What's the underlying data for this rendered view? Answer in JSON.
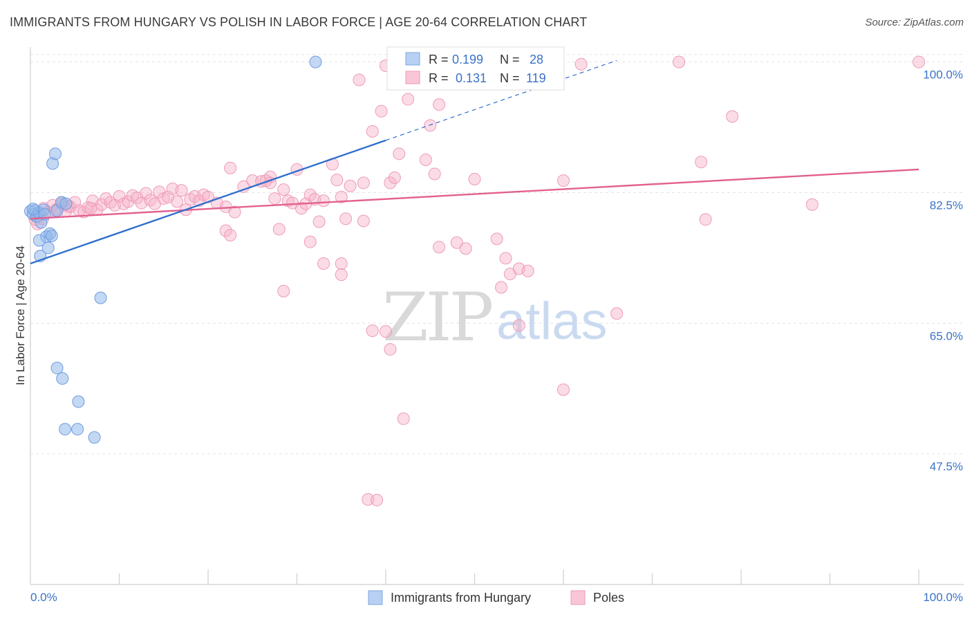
{
  "header": {
    "title": "IMMIGRANTS FROM HUNGARY VS POLISH IN LABOR FORCE | AGE 20-64 CORRELATION CHART",
    "source": "Source: ZipAtlas.com"
  },
  "watermark": {
    "zip": "ZIP",
    "atlas": "atlas"
  },
  "legend": {
    "r_label": "R =",
    "n_label": "N =",
    "entries": [
      {
        "r": "0.199",
        "n": "28"
      },
      {
        "r": "0.131",
        "n": "119"
      }
    ]
  },
  "chart_data": {
    "type": "scatter",
    "title": "IMMIGRANTS FROM HUNGARY VS POLISH IN LABOR FORCE | AGE 20-64 CORRELATION CHART",
    "xlabel": "",
    "ylabel": "In Labor Force | Age 20-64",
    "xlim": [
      0,
      100
    ],
    "ylim": [
      30,
      102
    ],
    "x_tick_labels": [
      "0.0%",
      "100.0%"
    ],
    "y_ticks": [
      47.5,
      65.0,
      82.5,
      100.0
    ],
    "y_tick_labels": [
      "47.5%",
      "65.0%",
      "82.5%",
      "100.0%"
    ],
    "grid": true,
    "legend_position": "bottom",
    "series": [
      {
        "name": "Immigrants from Hungary",
        "color": "#92b8ea",
        "line_color": "#2f6fce",
        "r": 0.199,
        "n": 28,
        "trend": {
          "x0": 0,
          "y0": 73.0,
          "x1": 40,
          "y1": 89.5,
          "dash_to_x": 66,
          "dash_to_y": 100.2
        },
        "points": [
          [
            0.0,
            80.0
          ],
          [
            0.3,
            79.6
          ],
          [
            0.5,
            80.1
          ],
          [
            0.7,
            79.3
          ],
          [
            1.0,
            79.8
          ],
          [
            1.2,
            78.5
          ],
          [
            1.5,
            80.2
          ],
          [
            1.8,
            76.6
          ],
          [
            2.0,
            75.1
          ],
          [
            2.2,
            77.0
          ],
          [
            2.5,
            86.4
          ],
          [
            2.8,
            87.7
          ],
          [
            3.0,
            80.1
          ],
          [
            3.5,
            81.2
          ],
          [
            4.0,
            81.0
          ],
          [
            1.0,
            76.1
          ],
          [
            1.1,
            74.0
          ],
          [
            2.4,
            76.7
          ],
          [
            7.9,
            68.4
          ],
          [
            3.0,
            59.0
          ],
          [
            3.6,
            57.6
          ],
          [
            5.4,
            54.5
          ],
          [
            3.9,
            50.8
          ],
          [
            5.3,
            50.8
          ],
          [
            7.2,
            49.7
          ],
          [
            32.1,
            100.0
          ],
          [
            0.3,
            80.3
          ],
          [
            1.6,
            79.6
          ]
        ]
      },
      {
        "name": "Poles",
        "color": "#f6b2c8",
        "line_color": "#e2608e",
        "r": 0.131,
        "n": 119,
        "trend": {
          "x0": 0,
          "y0": 79.0,
          "x1": 100,
          "y1": 85.6
        },
        "points": [
          [
            0.5,
            78.9
          ],
          [
            1.0,
            79.5
          ],
          [
            1.5,
            80.4
          ],
          [
            2.0,
            79.9
          ],
          [
            2.5,
            80.8
          ],
          [
            3.0,
            80.3
          ],
          [
            3.5,
            81.1
          ],
          [
            4.0,
            80.0
          ],
          [
            4.5,
            80.6
          ],
          [
            5.0,
            81.2
          ],
          [
            5.5,
            80.1
          ],
          [
            6.0,
            79.9
          ],
          [
            6.5,
            80.5
          ],
          [
            7.0,
            81.4
          ],
          [
            7.5,
            80.2
          ],
          [
            8.0,
            80.9
          ],
          [
            8.5,
            81.7
          ],
          [
            9.0,
            81.2
          ],
          [
            9.5,
            80.8
          ],
          [
            10.0,
            82.0
          ],
          [
            10.5,
            81.0
          ],
          [
            11.0,
            81.3
          ],
          [
            11.5,
            82.1
          ],
          [
            12.0,
            81.8
          ],
          [
            12.5,
            81.1
          ],
          [
            13.0,
            82.4
          ],
          [
            13.5,
            81.5
          ],
          [
            14.0,
            81.0
          ],
          [
            14.5,
            82.6
          ],
          [
            15.0,
            81.7
          ],
          [
            15.5,
            81.9
          ],
          [
            16.0,
            83.0
          ],
          [
            16.5,
            81.3
          ],
          [
            17.0,
            82.8
          ],
          [
            17.5,
            80.2
          ],
          [
            18.0,
            81.6
          ],
          [
            18.5,
            82.0
          ],
          [
            19.0,
            81.4
          ],
          [
            19.5,
            82.2
          ],
          [
            20.0,
            81.9
          ],
          [
            21.0,
            81.1
          ],
          [
            22.0,
            80.6
          ],
          [
            0.8,
            78.3
          ],
          [
            1.4,
            79.0
          ],
          [
            2.8,
            80.1
          ],
          [
            3.6,
            80.9
          ],
          [
            4.2,
            80.7
          ],
          [
            6.8,
            80.4
          ],
          [
            22.5,
            85.8
          ],
          [
            24.0,
            83.3
          ],
          [
            25.0,
            84.1
          ],
          [
            26.0,
            84.0
          ],
          [
            27.0,
            84.6
          ],
          [
            27.5,
            81.7
          ],
          [
            28.5,
            82.9
          ],
          [
            30.0,
            85.6
          ],
          [
            30.5,
            80.4
          ],
          [
            31.0,
            81.0
          ],
          [
            22.0,
            77.4
          ],
          [
            22.5,
            76.8
          ],
          [
            23.0,
            79.9
          ],
          [
            27.0,
            83.8
          ],
          [
            26.5,
            84.1
          ],
          [
            28.0,
            77.6
          ],
          [
            29.0,
            81.4
          ],
          [
            29.5,
            81.1
          ],
          [
            31.5,
            82.2
          ],
          [
            32.0,
            81.6
          ],
          [
            32.5,
            78.6
          ],
          [
            33.0,
            81.4
          ],
          [
            34.0,
            86.3
          ],
          [
            34.5,
            84.2
          ],
          [
            35.0,
            81.9
          ],
          [
            35.5,
            79.0
          ],
          [
            36.0,
            83.4
          ],
          [
            37.5,
            83.8
          ],
          [
            37.5,
            78.7
          ],
          [
            38.5,
            90.7
          ],
          [
            39.5,
            93.4
          ],
          [
            40.5,
            83.8
          ],
          [
            41.0,
            84.5
          ],
          [
            41.5,
            87.7
          ],
          [
            42.5,
            95.0
          ],
          [
            43.5,
            99.5
          ],
          [
            45.0,
            91.5
          ],
          [
            44.5,
            86.9
          ],
          [
            45.5,
            85.0
          ],
          [
            46.0,
            75.2
          ],
          [
            48.0,
            75.8
          ],
          [
            49.0,
            75.0
          ],
          [
            47.5,
            99.8
          ],
          [
            50.0,
            84.3
          ],
          [
            50.5,
            99.6
          ],
          [
            52.5,
            76.3
          ],
          [
            53.0,
            69.8
          ],
          [
            53.5,
            73.7
          ],
          [
            54.0,
            71.6
          ],
          [
            55.0,
            72.3
          ],
          [
            55.0,
            64.7
          ],
          [
            56.0,
            72.0
          ],
          [
            46.0,
            94.3
          ],
          [
            37.0,
            97.6
          ],
          [
            40.0,
            99.5
          ],
          [
            57.5,
            99.8
          ],
          [
            60.0,
            84.1
          ],
          [
            62.0,
            99.7
          ],
          [
            66.0,
            66.3
          ],
          [
            73.0,
            100.0
          ],
          [
            75.5,
            86.6
          ],
          [
            76.0,
            78.9
          ],
          [
            79.0,
            92.7
          ],
          [
            88.0,
            80.9
          ],
          [
            100.0,
            100.0
          ],
          [
            35.0,
            73.0
          ],
          [
            31.5,
            75.9
          ],
          [
            33.0,
            73.0
          ],
          [
            35.0,
            71.5
          ],
          [
            28.5,
            69.3
          ],
          [
            40.0,
            63.9
          ],
          [
            40.5,
            61.5
          ],
          [
            38.5,
            64.0
          ],
          [
            42.0,
            52.2
          ],
          [
            60.0,
            56.1
          ],
          [
            38.0,
            41.4
          ],
          [
            39.0,
            41.3
          ]
        ]
      }
    ]
  }
}
